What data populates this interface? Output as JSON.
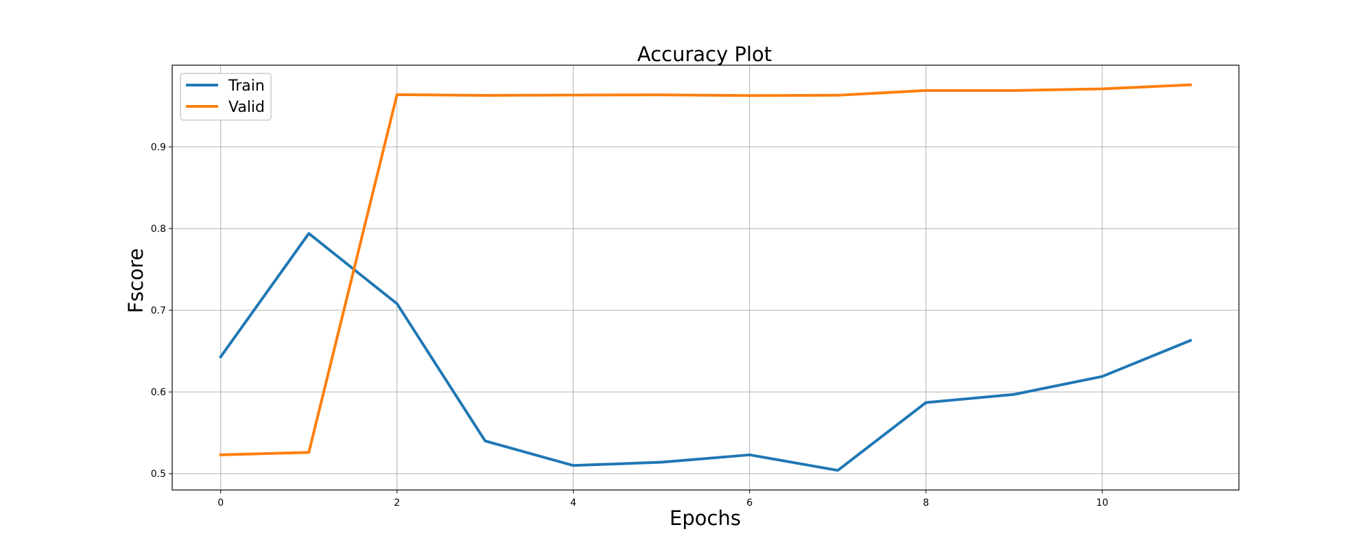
{
  "chart_data": {
    "type": "line",
    "title": "Accuracy Plot",
    "xlabel": "Epochs",
    "ylabel": "Fscore",
    "x": [
      0,
      1,
      2,
      3,
      4,
      5,
      6,
      7,
      8,
      9,
      10,
      11
    ],
    "xticks": [
      0,
      2,
      4,
      6,
      8,
      10
    ],
    "yticks": [
      0.5,
      0.6,
      0.7,
      0.8,
      0.9
    ],
    "xtick_labels": [
      "0",
      "2",
      "4",
      "6",
      "8",
      "10"
    ],
    "ytick_labels": [
      "0.5",
      "0.6",
      "0.7",
      "0.8",
      "0.9"
    ],
    "xlim": [
      -0.55,
      11.55
    ],
    "ylim": [
      0.48,
      1.0
    ],
    "grid": true,
    "legend_position": "top-left",
    "series": [
      {
        "name": "Train",
        "color": "#1f77b4",
        "values": [
          0.643,
          0.794,
          0.708,
          0.54,
          0.51,
          0.514,
          0.523,
          0.504,
          0.587,
          0.597,
          0.619,
          0.663
        ]
      },
      {
        "name": "Valid",
        "color": "#ff7f0e",
        "values": [
          0.523,
          0.526,
          0.964,
          0.963,
          0.9635,
          0.9637,
          0.9628,
          0.9632,
          0.969,
          0.969,
          0.971,
          0.976
        ]
      }
    ]
  }
}
